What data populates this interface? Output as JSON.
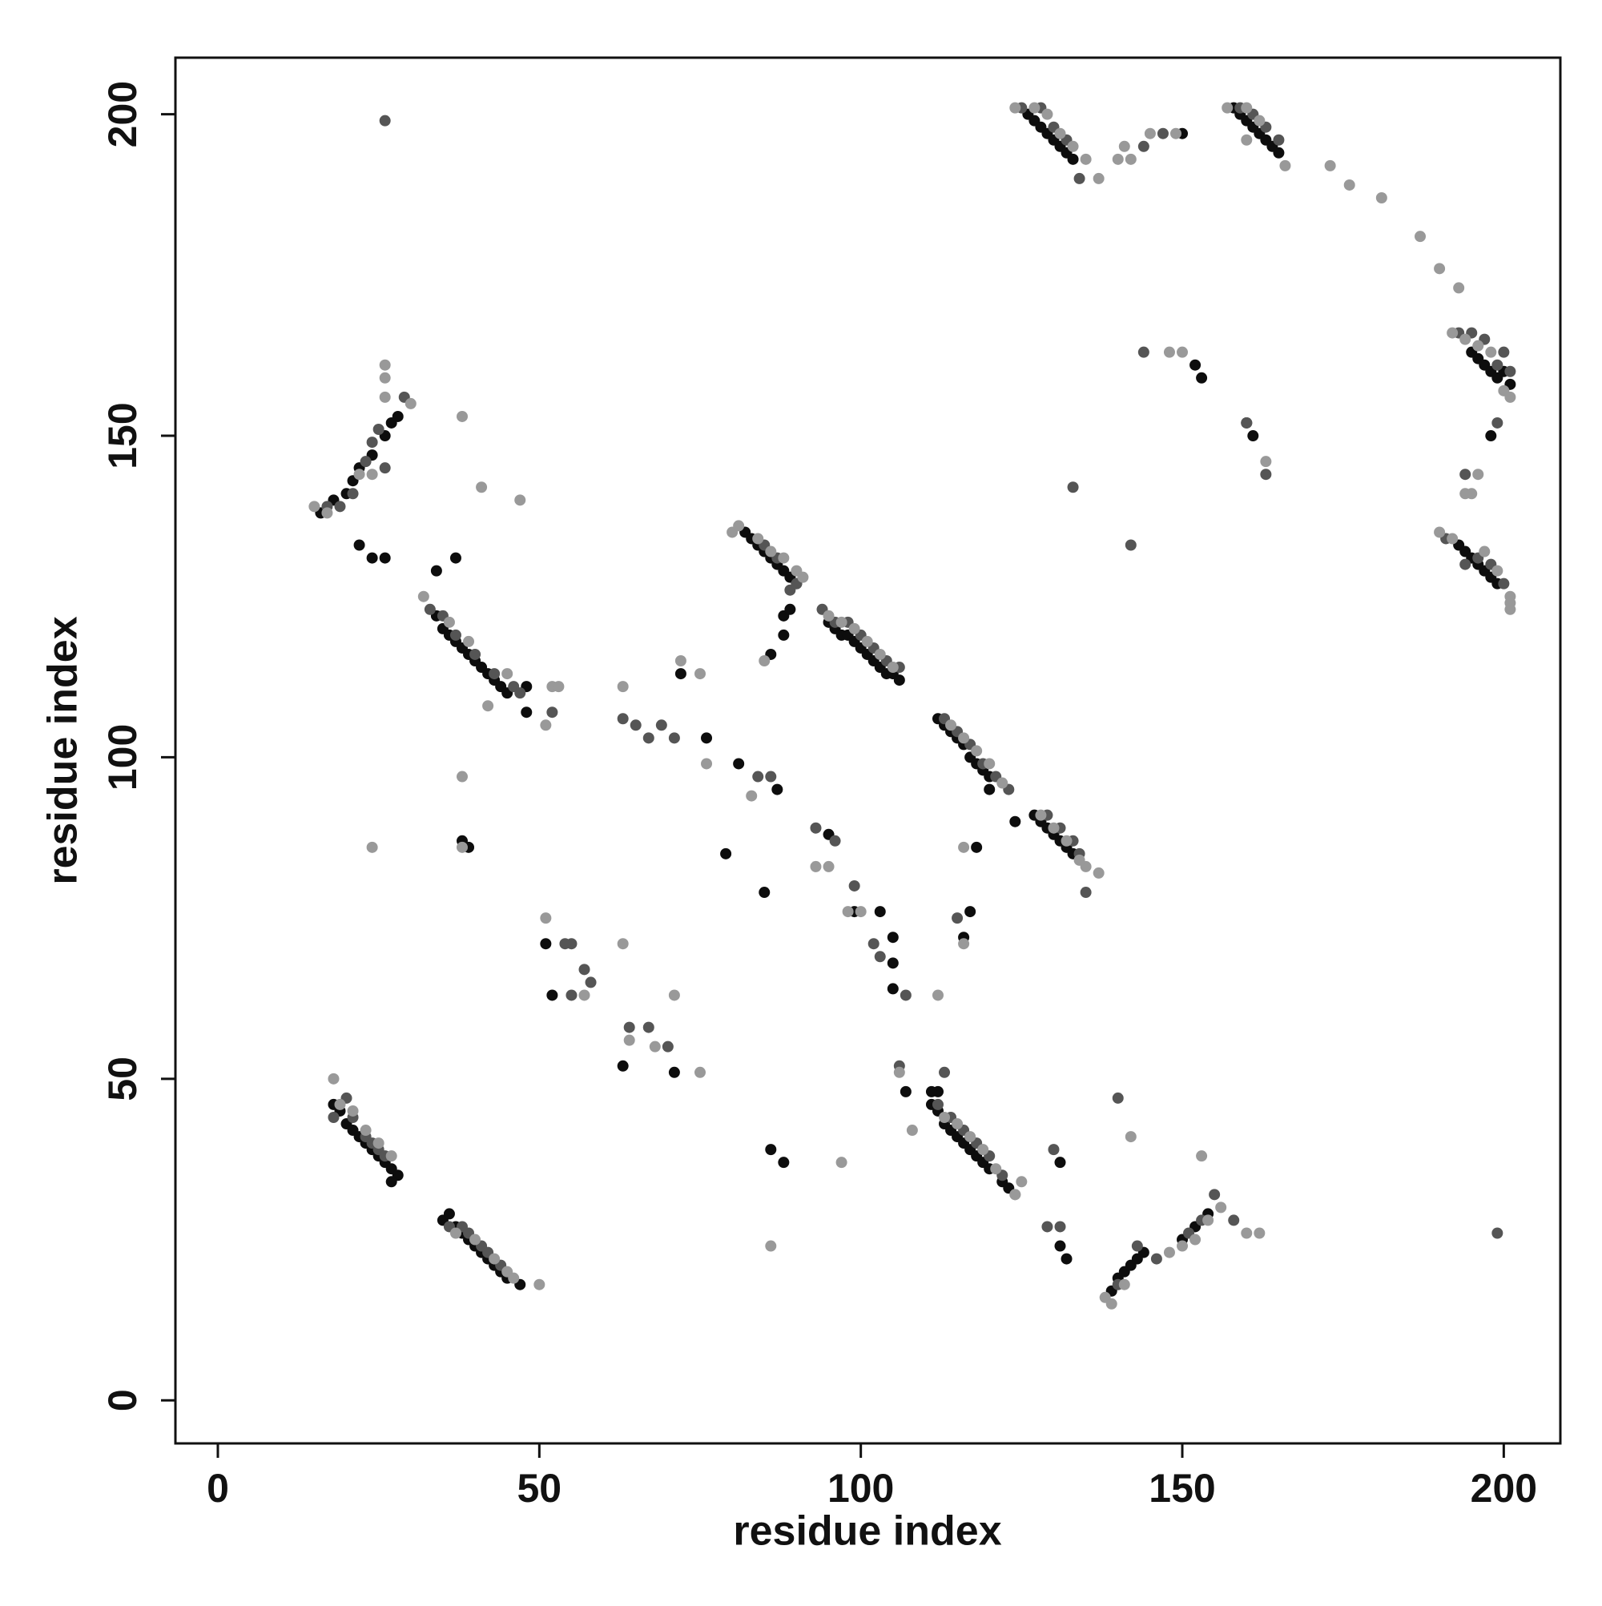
{
  "chart_data": {
    "type": "scatter",
    "x_label": "residue index",
    "y_label": "residue index",
    "xlim": [
      -6.6,
      208.8
    ],
    "ylim": [
      -6.7,
      208.8
    ],
    "xticks": [
      0,
      50,
      100,
      150,
      200
    ],
    "yticks": [
      0,
      50,
      100,
      150,
      200
    ],
    "series": [
      {
        "color": "#0d0d0d",
        "x": [
          18,
          19,
          20,
          21,
          22,
          23,
          24,
          25,
          26,
          27,
          28,
          27,
          35,
          36,
          37,
          38,
          39,
          40,
          41,
          42,
          43,
          44,
          45,
          47,
          16,
          18,
          20,
          21,
          22,
          24,
          26,
          27,
          28,
          34,
          35,
          36,
          37,
          38,
          39,
          40,
          41,
          42,
          43,
          44,
          45,
          48,
          48,
          82,
          83,
          84,
          85,
          86,
          87,
          88,
          89,
          90,
          88,
          95,
          96,
          97,
          98,
          99,
          100,
          101,
          102,
          103,
          104,
          105,
          106,
          112,
          113,
          114,
          115,
          116,
          117,
          118,
          119,
          120,
          120,
          127,
          128,
          129,
          130,
          131,
          132,
          133,
          112,
          111,
          112,
          113,
          114,
          115,
          116,
          117,
          118,
          119,
          120,
          122,
          123,
          139,
          140,
          141,
          142,
          143,
          144,
          150,
          152,
          154,
          126,
          127,
          128,
          129,
          130,
          131,
          132,
          133,
          158,
          159,
          160,
          161,
          162,
          163,
          164,
          165,
          195,
          196,
          197,
          198,
          199,
          200,
          201,
          193,
          194,
          195,
          196,
          197,
          198,
          199,
          22,
          24,
          26,
          37,
          34,
          38,
          39,
          51,
          52,
          63,
          71,
          72,
          76,
          86,
          88,
          89,
          87,
          86,
          88,
          79,
          85,
          99,
          103,
          105,
          105,
          107,
          111,
          116,
          117,
          118,
          124,
          131,
          132,
          131,
          150,
          152,
          153,
          160,
          161,
          198,
          105,
          95,
          81
        ],
        "y": [
          46,
          45,
          43,
          42,
          41,
          40,
          39,
          38,
          37,
          36,
          35,
          34,
          28,
          29,
          27,
          26,
          25,
          24,
          23,
          22,
          21,
          20,
          19,
          18,
          138,
          140,
          141,
          143,
          145,
          147,
          150,
          152,
          153,
          122,
          120,
          119,
          118,
          117,
          116,
          115,
          114,
          113,
          112,
          111,
          110,
          111,
          107,
          135,
          134,
          133,
          132,
          131,
          130,
          129,
          128,
          127,
          122,
          121,
          120,
          119,
          119,
          118,
          117,
          116,
          115,
          114,
          113,
          113,
          112,
          106,
          105,
          104,
          103,
          102,
          100,
          99,
          98,
          97,
          95,
          91,
          90,
          89,
          88,
          87,
          86,
          85,
          48,
          46,
          45,
          43,
          42,
          41,
          40,
          39,
          38,
          37,
          36,
          34,
          33,
          17,
          19,
          20,
          21,
          22,
          23,
          25,
          27,
          29,
          200,
          199,
          198,
          197,
          196,
          195,
          194,
          193,
          201,
          200,
          199,
          198,
          197,
          196,
          195,
          194,
          163,
          162,
          161,
          160,
          159,
          160,
          158,
          133,
          132,
          131,
          130,
          129,
          128,
          127,
          133,
          131,
          131,
          131,
          129,
          87,
          86,
          71,
          63,
          52,
          51,
          113,
          103,
          116,
          119,
          123,
          95,
          39,
          37,
          85,
          79,
          76,
          76,
          72,
          64,
          48,
          48,
          72,
          76,
          86,
          90,
          37,
          22,
          24,
          197,
          161,
          159,
          152,
          150,
          150,
          68,
          88,
          99
        ]
      },
      {
        "color": "#555555",
        "x": [
          18,
          20,
          21,
          23,
          24,
          25,
          26,
          36,
          38,
          39,
          41,
          42,
          44,
          17,
          19,
          21,
          23,
          24,
          25,
          29,
          26,
          33,
          35,
          37,
          40,
          43,
          46,
          47,
          52,
          85,
          87,
          89,
          90,
          94,
          96,
          98,
          100,
          102,
          104,
          106,
          113,
          115,
          117,
          119,
          121,
          123,
          129,
          131,
          133,
          134,
          135,
          112,
          114,
          116,
          118,
          120,
          122,
          140,
          143,
          146,
          151,
          153,
          155,
          158,
          199,
          125,
          128,
          130,
          132,
          134,
          159,
          161,
          163,
          165,
          193,
          195,
          197,
          199,
          200,
          201,
          191,
          194,
          196,
          198,
          200,
          26,
          63,
          65,
          67,
          69,
          71,
          55,
          57,
          58,
          64,
          67,
          70,
          84,
          86,
          93,
          96,
          99,
          102,
          103,
          107,
          106,
          113,
          115,
          130,
          131,
          129,
          142,
          133,
          144,
          144,
          147,
          160,
          163,
          194,
          199,
          140,
          54,
          55
        ],
        "y": [
          44,
          47,
          44,
          41,
          40,
          39,
          38,
          27,
          27,
          26,
          24,
          23,
          21,
          139,
          139,
          141,
          146,
          149,
          151,
          156,
          145,
          123,
          122,
          119,
          116,
          113,
          111,
          110,
          107,
          133,
          131,
          126,
          127,
          123,
          121,
          121,
          119,
          117,
          115,
          114,
          106,
          104,
          102,
          99,
          97,
          95,
          91,
          89,
          87,
          85,
          79,
          46,
          44,
          42,
          40,
          38,
          35,
          18,
          24,
          22,
          26,
          28,
          32,
          28,
          26,
          201,
          201,
          198,
          196,
          190,
          201,
          200,
          198,
          196,
          166,
          166,
          165,
          161,
          163,
          160,
          134,
          130,
          131,
          130,
          127,
          199,
          106,
          105,
          103,
          105,
          103,
          71,
          67,
          65,
          58,
          58,
          55,
          97,
          97,
          89,
          87,
          80,
          71,
          69,
          63,
          52,
          51,
          75,
          39,
          27,
          27,
          133,
          142,
          163,
          195,
          197,
          152,
          144,
          144,
          152,
          47,
          71,
          63
        ]
      },
      {
        "color": "#999999",
        "x": [
          18,
          19,
          21,
          23,
          25,
          27,
          37,
          40,
          43,
          45,
          50,
          46,
          15,
          17,
          22,
          24,
          26,
          26,
          30,
          38,
          41,
          47,
          26,
          32,
          36,
          39,
          42,
          45,
          52,
          51,
          80,
          81,
          84,
          86,
          88,
          90,
          91,
          85,
          95,
          97,
          99,
          101,
          103,
          105,
          114,
          116,
          118,
          120,
          122,
          128,
          130,
          132,
          135,
          137,
          134,
          113,
          115,
          117,
          119,
          121,
          124,
          125,
          138,
          139,
          141,
          148,
          150,
          152,
          154,
          156,
          160,
          162,
          153,
          124,
          127,
          129,
          131,
          133,
          135,
          137,
          140,
          141,
          145,
          157,
          160,
          162,
          166,
          192,
          194,
          196,
          198,
          201,
          200,
          190,
          192,
          197,
          199,
          201,
          201,
          201,
          38,
          38,
          24,
          72,
          75,
          76,
          63,
          63,
          71,
          75,
          64,
          68,
          86,
          97,
          83,
          93,
          95,
          98,
          100,
          112,
          116,
          116,
          108,
          106,
          124,
          173,
          176,
          181,
          187,
          190,
          193,
          194,
          196,
          195,
          163,
          142,
          148,
          150,
          142,
          149,
          160,
          53,
          51,
          57
        ],
        "y": [
          50,
          46,
          45,
          42,
          40,
          38,
          26,
          25,
          22,
          20,
          18,
          19,
          139,
          138,
          144,
          144,
          156,
          161,
          155,
          153,
          142,
          140,
          159,
          125,
          121,
          118,
          108,
          113,
          111,
          105,
          135,
          136,
          134,
          132,
          131,
          129,
          128,
          115,
          122,
          121,
          120,
          118,
          116,
          114,
          105,
          103,
          101,
          99,
          96,
          91,
          89,
          87,
          83,
          82,
          84,
          44,
          43,
          41,
          39,
          36,
          32,
          34,
          16,
          15,
          18,
          23,
          24,
          25,
          28,
          30,
          26,
          26,
          38,
          201,
          201,
          200,
          197,
          195,
          193,
          190,
          193,
          195,
          197,
          201,
          201,
          199,
          192,
          166,
          165,
          164,
          163,
          156,
          157,
          135,
          134,
          132,
          129,
          125,
          123,
          124,
          97,
          86,
          86,
          115,
          113,
          99,
          111,
          71,
          63,
          51,
          56,
          55,
          24,
          37,
          94,
          83,
          83,
          76,
          76,
          63,
          71,
          86,
          42,
          51,
          32,
          192,
          189,
          187,
          181,
          176,
          173,
          141,
          144,
          141,
          146,
          41,
          163,
          163,
          193,
          197,
          196,
          111,
          75,
          63
        ]
      }
    ]
  }
}
